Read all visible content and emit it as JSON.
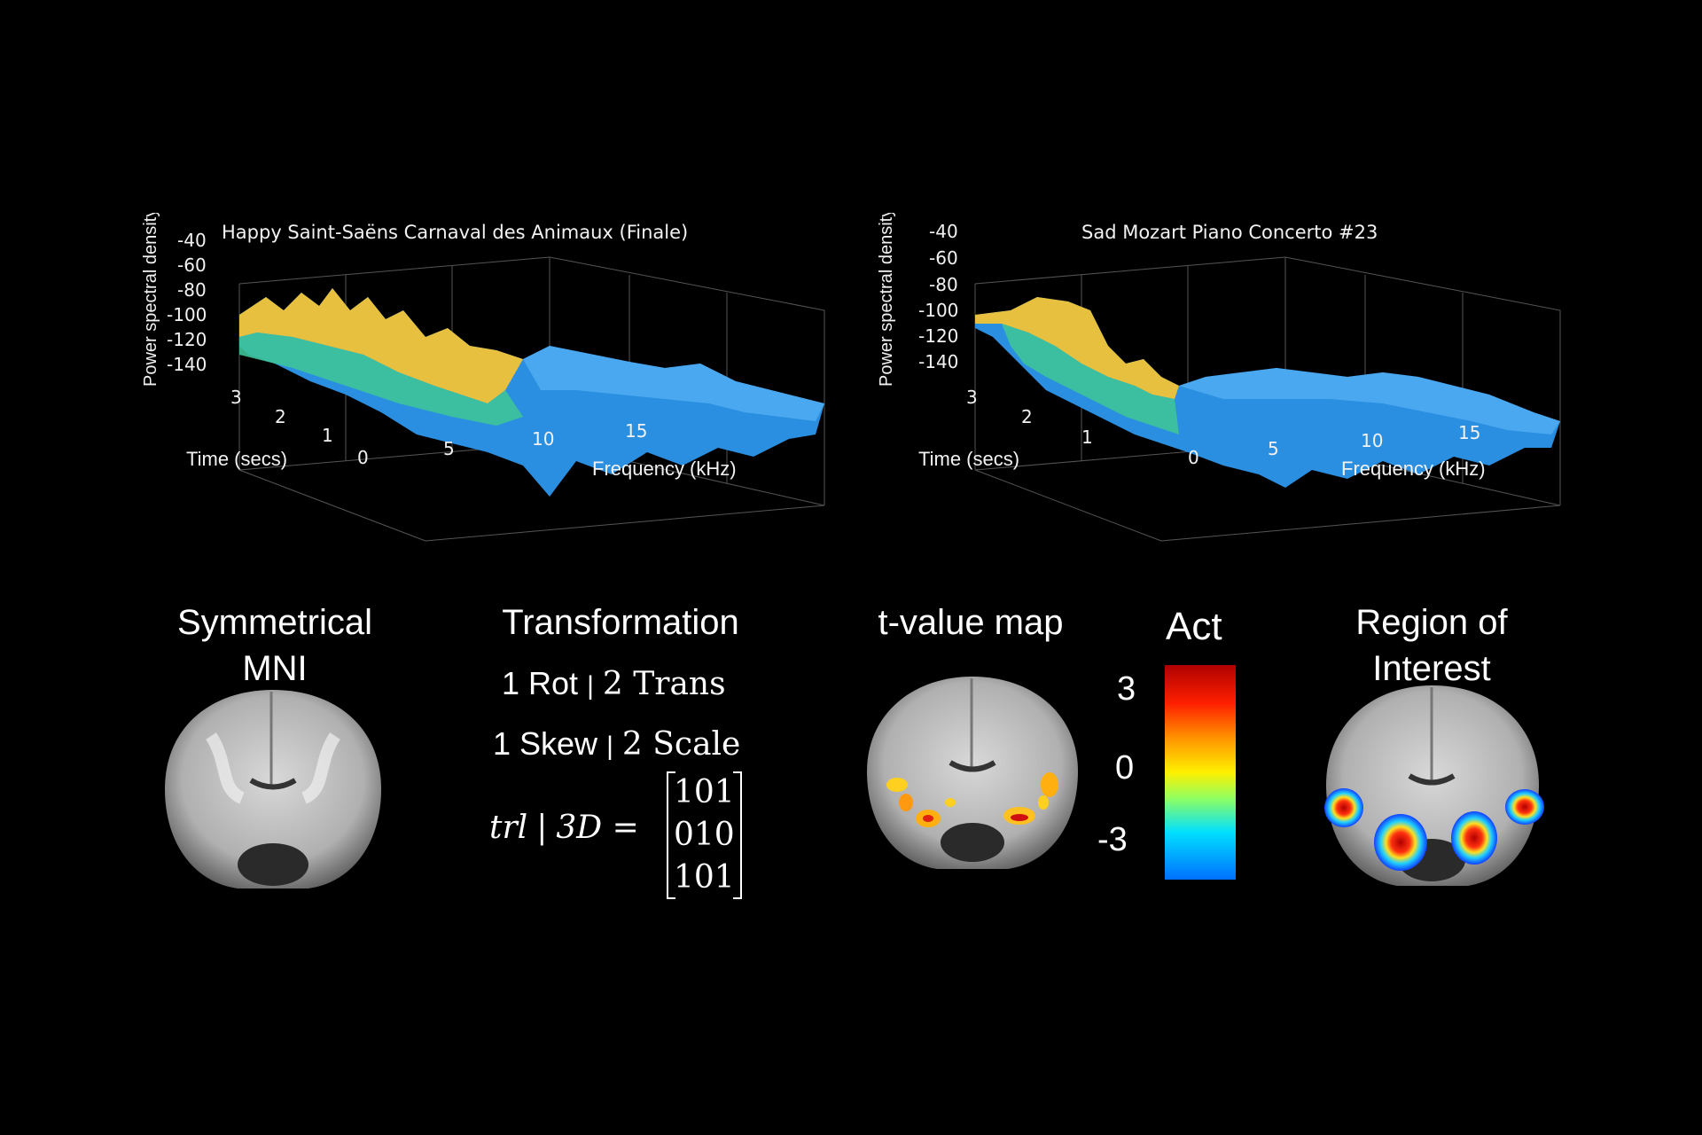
{
  "plots": [
    {
      "title": "Happy Saint-Saëns Carnaval des Animaux (Finale)",
      "zlabel": "Power spectral density",
      "ylabel": "Time (secs)",
      "xlabel": "Frequency (kHz)",
      "z_ticks": [
        "-40",
        "-60",
        "-80",
        "-100",
        "-120",
        "-140"
      ],
      "time_ticks": [
        "3",
        "2",
        "1"
      ],
      "freq_ticks": [
        "0",
        "5",
        "10",
        "15"
      ]
    },
    {
      "title": "Sad Mozart Piano Concerto #23",
      "zlabel": "Power spectral density",
      "ylabel": "Time (secs)",
      "xlabel": "Frequency (kHz)",
      "z_ticks": [
        "-40",
        "-60",
        "-80",
        "-100",
        "-120",
        "-140"
      ],
      "time_ticks": [
        "3",
        "2",
        "1"
      ],
      "freq_ticks": [
        "0",
        "5",
        "10",
        "15"
      ]
    }
  ],
  "panels": {
    "mni": {
      "heading_line1": "Symmetrical",
      "heading_line2": "MNI"
    },
    "transformation": {
      "heading": "Transformation",
      "line1_a": "1 Rot",
      "line1_sep": "|",
      "line1_b": "2 Trans",
      "line2_a": "1 Skew",
      "line2_sep": "|",
      "line2_b": "2 Scale",
      "eq_lhs": "trl",
      "eq_sep": "|",
      "eq_mid": "3D =",
      "matrix_rows": [
        "101",
        "010",
        "101"
      ]
    },
    "tmap": {
      "heading": "t-value map"
    },
    "colorbar": {
      "title": "Act",
      "ticks": [
        "3",
        "0",
        "-3"
      ]
    },
    "roi": {
      "heading_line1": "Region of",
      "heading_line2": "Interest"
    }
  },
  "colors": {
    "background": "#000000",
    "surface_high": "#f5c040",
    "surface_low": "#2a8fe0",
    "roi_hot": "#d01010"
  }
}
